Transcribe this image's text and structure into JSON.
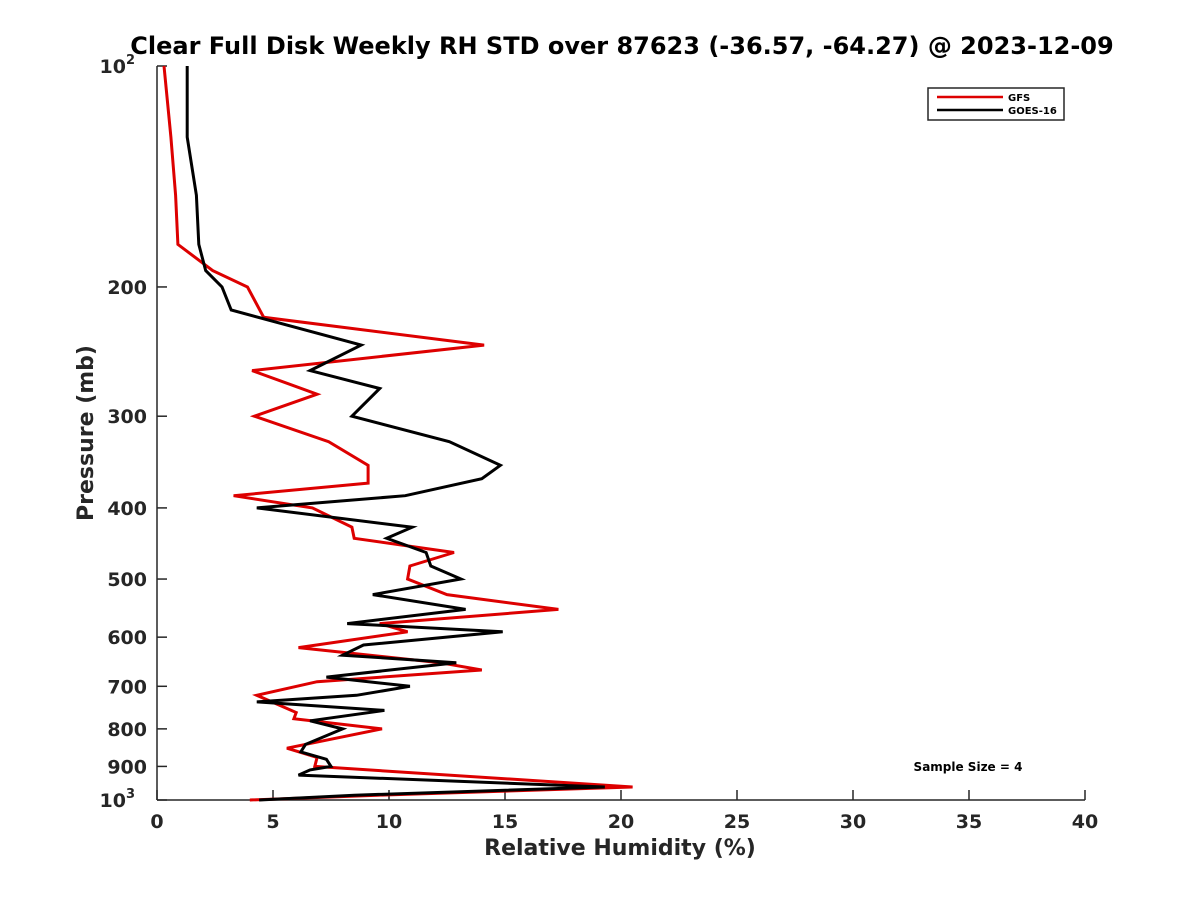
{
  "chart_data": {
    "type": "line",
    "title": "Clear Full Disk Weekly RH STD over 87623 (-36.57, -64.27) @ 2023-12-09",
    "xlabel": "Relative Humidity (%)",
    "ylabel": "Pressure (mb)",
    "xlim": [
      0,
      40
    ],
    "ylim": [
      100,
      1000
    ],
    "y_scale": "log",
    "y_reversed": true,
    "x_ticks": [
      "0",
      "5",
      "10",
      "15",
      "20",
      "25",
      "30",
      "35",
      "40"
    ],
    "y_ticks": [
      {
        "value": 100,
        "base": "10",
        "sup": "2"
      },
      {
        "value": 200,
        "base": "200",
        "sup": ""
      },
      {
        "value": 300,
        "base": "300",
        "sup": ""
      },
      {
        "value": 400,
        "base": "400",
        "sup": ""
      },
      {
        "value": 500,
        "base": "500",
        "sup": ""
      },
      {
        "value": 600,
        "base": "600",
        "sup": ""
      },
      {
        "value": 700,
        "base": "700",
        "sup": ""
      },
      {
        "value": 800,
        "base": "800",
        "sup": ""
      },
      {
        "value": 900,
        "base": "900",
        "sup": ""
      },
      {
        "value": 1000,
        "base": "10",
        "sup": "3"
      }
    ],
    "legend_position": "top-right",
    "grid": false,
    "annotation": "Sample Size = 4",
    "series": [
      {
        "name": "GFS",
        "color": "#dd0000",
        "points": [
          [
            0.3,
            100
          ],
          [
            0.6,
            125
          ],
          [
            0.8,
            150
          ],
          [
            0.9,
            175
          ],
          [
            2.4,
            190
          ],
          [
            3.9,
            200
          ],
          [
            4.6,
            220
          ],
          [
            14.1,
            240
          ],
          [
            4.1,
            260
          ],
          [
            6.9,
            280
          ],
          [
            4.2,
            300
          ],
          [
            7.4,
            325
          ],
          [
            9.1,
            350
          ],
          [
            9.1,
            370
          ],
          [
            3.3,
            385
          ],
          [
            6.7,
            400
          ],
          [
            8.4,
            425
          ],
          [
            8.5,
            440
          ],
          [
            12.8,
            460
          ],
          [
            10.9,
            480
          ],
          [
            10.8,
            500
          ],
          [
            12.5,
            525
          ],
          [
            17.3,
            550
          ],
          [
            9.6,
            575
          ],
          [
            10.8,
            590
          ],
          [
            6.1,
            620
          ],
          [
            12.2,
            650
          ],
          [
            14.0,
            665
          ],
          [
            6.9,
            690
          ],
          [
            4.3,
            720
          ],
          [
            6.0,
            760
          ],
          [
            5.9,
            775
          ],
          [
            9.7,
            800
          ],
          [
            5.6,
            850
          ],
          [
            6.9,
            875
          ],
          [
            6.8,
            900
          ],
          [
            20.5,
            960
          ],
          [
            9.5,
            985
          ],
          [
            4.0,
            1000
          ]
        ]
      },
      {
        "name": "GOES-16",
        "color": "#000000",
        "points": [
          [
            1.3,
            100
          ],
          [
            1.3,
            125
          ],
          [
            1.7,
            150
          ],
          [
            1.8,
            175
          ],
          [
            2.1,
            190
          ],
          [
            2.8,
            200
          ],
          [
            3.2,
            215
          ],
          [
            8.8,
            240
          ],
          [
            6.6,
            260
          ],
          [
            9.6,
            275
          ],
          [
            8.4,
            300
          ],
          [
            12.6,
            325
          ],
          [
            14.8,
            350
          ],
          [
            14.0,
            365
          ],
          [
            10.7,
            385
          ],
          [
            4.3,
            400
          ],
          [
            11.0,
            425
          ],
          [
            9.9,
            440
          ],
          [
            11.6,
            460
          ],
          [
            11.8,
            480
          ],
          [
            13.1,
            500
          ],
          [
            9.3,
            525
          ],
          [
            13.3,
            550
          ],
          [
            8.2,
            575
          ],
          [
            14.9,
            590
          ],
          [
            8.9,
            615
          ],
          [
            8.0,
            635
          ],
          [
            12.9,
            650
          ],
          [
            7.3,
            680
          ],
          [
            10.9,
            700
          ],
          [
            8.6,
            720
          ],
          [
            4.3,
            735
          ],
          [
            9.8,
            755
          ],
          [
            6.6,
            780
          ],
          [
            8.0,
            800
          ],
          [
            6.4,
            840
          ],
          [
            6.2,
            860
          ],
          [
            7.3,
            880
          ],
          [
            7.5,
            900
          ],
          [
            6.6,
            910
          ],
          [
            6.1,
            925
          ],
          [
            19.3,
            960
          ],
          [
            8.5,
            985
          ],
          [
            4.4,
            1000
          ]
        ]
      }
    ]
  }
}
